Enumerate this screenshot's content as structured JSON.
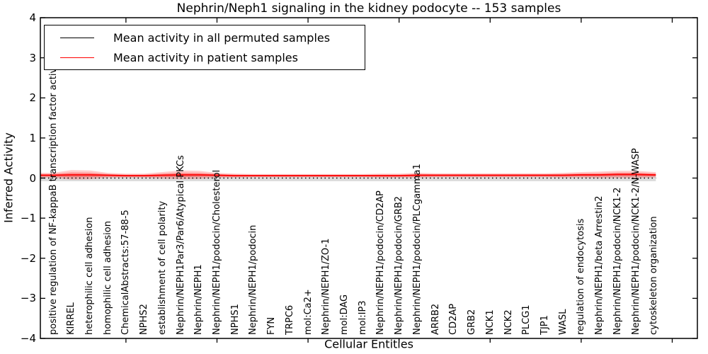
{
  "figure": {
    "title": "Nephrin/Neph1 signaling in the kidney podocyte -- 153 samples",
    "xlabel": "Cellular Entities",
    "ylabel": "Inferred Activity"
  },
  "legend": {
    "entries": [
      {
        "label": "Mean activity in all permuted samples",
        "color": "#000000"
      },
      {
        "label": "Mean activity in patient samples",
        "color": "#ff0000"
      }
    ]
  },
  "axis": {
    "yticks": [
      "4",
      "3",
      "2",
      "1",
      "0",
      "−1",
      "−2",
      "−3",
      "−4"
    ]
  },
  "chart_data": {
    "type": "line",
    "title": "Nephrin/Neph1 signaling in the kidney podocyte -- 153 samples",
    "xlabel": "Cellular Entities",
    "ylabel": "Inferred Activity",
    "ylim": [
      -4,
      4
    ],
    "yticks": [
      4,
      3,
      2,
      1,
      0,
      -1,
      -2,
      -3,
      -4
    ],
    "grid": false,
    "legend_position": "upper left",
    "categories": [
      "positive regulation of NF-kappaB transcription factor activity",
      "KIRREL",
      "heterophilic cell adhesion",
      "homophilic cell adhesion",
      "ChemicalAbstracts:57-88-5",
      "NPHS2",
      "establishment of cell polarity",
      "Nephrin/NEPH1Par3/Par6/Atypical PKCs",
      "Nephrin/NEPH1",
      "Nephrin/NEPH1/podocin/Cholesterol",
      "NPHS1",
      "Nephrin/NEPH1/podocin",
      "FYN",
      "TRPC6",
      "mol:Ca2+",
      "Nephrin/NEPH1/ZO-1",
      "mol:DAG",
      "mol:IP3",
      "Nephrin/NEPH1/podocin/CD2AP",
      "Nephrin/NEPH1/podocin/GRB2",
      "Nephrin/NEPH1/podocin/PLCgamma1",
      "ARRB2",
      "CD2AP",
      "GRB2",
      "NCK1",
      "NCK2",
      "PLCG1",
      "TJP1",
      "WASL",
      "regulation of endocytosis",
      "Nephrin/NEPH1/beta Arrestin2",
      "Nephrin/NEPH1/podocin/NCK1-2",
      "Nephrin/NEPH1/podocin/NCK1-2/N-WASP",
      "cytoskeleton organization"
    ],
    "series": [
      {
        "name": "Mean activity in all permuted samples",
        "color": "#000000",
        "line_style": "dotted",
        "values": [
          0,
          0,
          0,
          0,
          0,
          0,
          0,
          0,
          0,
          0,
          0,
          0,
          0,
          0,
          0,
          0,
          0,
          0,
          0,
          0,
          0,
          0,
          0,
          0,
          0,
          0,
          0,
          0,
          0,
          0,
          0,
          0,
          0,
          0
        ],
        "std": [
          0.08,
          0.08,
          0.08,
          0.08,
          0.08,
          0.08,
          0.08,
          0.08,
          0.08,
          0.08,
          0.08,
          0.08,
          0.08,
          0.08,
          0.08,
          0.08,
          0.08,
          0.08,
          0.08,
          0.08,
          0.08,
          0.08,
          0.08,
          0.08,
          0.08,
          0.08,
          0.08,
          0.08,
          0.08,
          0.08,
          0.08,
          0.08,
          0.08,
          0.08
        ],
        "band_color": "rgba(128,128,128,0.28)"
      },
      {
        "name": "Mean activity in patient samples",
        "color": "#ff0000",
        "line_style": "solid",
        "values": [
          0.07,
          0.08,
          0.08,
          0.07,
          0.06,
          0.06,
          0.07,
          0.08,
          0.08,
          0.07,
          0.06,
          0.06,
          0.06,
          0.06,
          0.06,
          0.06,
          0.06,
          0.06,
          0.06,
          0.06,
          0.07,
          0.07,
          0.07,
          0.07,
          0.07,
          0.07,
          0.07,
          0.07,
          0.07,
          0.08,
          0.08,
          0.09,
          0.09,
          0.08
        ],
        "std": [
          0.06,
          0.12,
          0.11,
          0.06,
          0.05,
          0.05,
          0.08,
          0.11,
          0.1,
          0.06,
          0.05,
          0.04,
          0.04,
          0.04,
          0.04,
          0.04,
          0.04,
          0.04,
          0.05,
          0.05,
          0.06,
          0.05,
          0.05,
          0.05,
          0.05,
          0.05,
          0.05,
          0.05,
          0.06,
          0.07,
          0.08,
          0.09,
          0.09,
          0.07
        ],
        "band_color": "rgba(255,0,0,0.20)"
      }
    ]
  }
}
